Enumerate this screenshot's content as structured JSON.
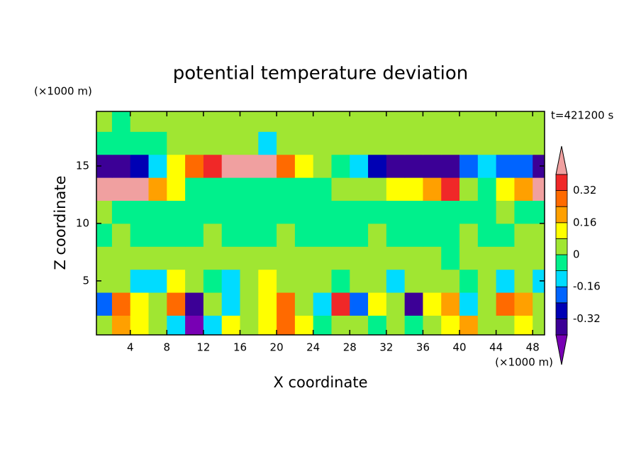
{
  "chart_data": {
    "type": "contour",
    "title": "potential temperature deviation",
    "x_label": "X coordinate",
    "y_label": "Z coordinate",
    "x_unit": "(×1000 m)",
    "y_unit": "(×1000 m)",
    "annotation": "t=421200 s",
    "xlim": [
      0.3,
      49.3
    ],
    "ylim": [
      0.3,
      19.75
    ],
    "xticks": [
      4,
      8,
      12,
      16,
      20,
      24,
      28,
      32,
      36,
      40,
      44,
      48
    ],
    "yticks": [
      5,
      10,
      15
    ],
    "x": [
      1,
      3,
      5,
      7,
      9,
      11,
      13,
      15,
      17,
      19,
      21,
      23,
      25,
      27,
      29,
      31,
      33,
      35,
      37,
      39,
      41,
      43,
      45,
      47,
      49
    ],
    "y": [
      1,
      3,
      5,
      7,
      9,
      11,
      13,
      15,
      17,
      19
    ],
    "z": [
      [
        0.05,
        0.2,
        0.1,
        0.03,
        -0.1,
        -0.45,
        -0.1,
        0.1,
        0.05,
        0.1,
        0.25,
        0.1,
        -0.03,
        0.03,
        0.05,
        -0.05,
        0.03,
        -0.05,
        0.05,
        0.15,
        0.2,
        0.05,
        0.03,
        0.1,
        0.03
      ],
      [
        -0.2,
        0.25,
        0.1,
        0.03,
        0.3,
        -0.35,
        0.05,
        -0.1,
        0.03,
        0.15,
        0.25,
        0.05,
        -0.1,
        0.35,
        -0.2,
        0.1,
        0.05,
        -0.35,
        0.1,
        0.2,
        -0.1,
        0.03,
        0.25,
        0.2,
        0.05
      ],
      [
        0.03,
        0.03,
        -0.1,
        -0.1,
        0.1,
        0.03,
        -0.03,
        -0.1,
        0.03,
        0.1,
        0.03,
        0.05,
        0.03,
        -0.05,
        0.03,
        0.03,
        -0.15,
        0.03,
        0.05,
        0.03,
        -0.05,
        0.03,
        -0.1,
        0.03,
        -0.1
      ],
      [
        0.03,
        0.03,
        0.03,
        0.03,
        0.05,
        0.03,
        0.03,
        0.03,
        0.05,
        0.03,
        0.03,
        0.03,
        0.05,
        0.03,
        0.03,
        0.03,
        0.03,
        0.03,
        0.03,
        -0.03,
        0.03,
        0.03,
        0.03,
        0.03,
        0.05
      ],
      [
        -0.03,
        0.03,
        -0.03,
        -0.03,
        -0.03,
        -0.03,
        0.03,
        -0.03,
        -0.03,
        -0.03,
        0.03,
        -0.03,
        -0.03,
        -0.03,
        -0.03,
        0.03,
        -0.03,
        -0.03,
        -0.03,
        -0.03,
        0.03,
        -0.03,
        -0.03,
        0.03,
        0.03
      ],
      [
        0.03,
        -0.03,
        -0.03,
        -0.03,
        -0.03,
        -0.03,
        -0.03,
        -0.03,
        -0.03,
        -0.03,
        -0.03,
        -0.03,
        -0.03,
        -0.03,
        -0.03,
        -0.03,
        -0.03,
        -0.03,
        -0.03,
        -0.03,
        -0.03,
        -0.03,
        0.03,
        -0.03,
        -0.03
      ],
      [
        0.45,
        0.45,
        0.4,
        0.2,
        0.1,
        -0.03,
        -0.03,
        -0.03,
        -0.03,
        -0.03,
        -0.03,
        -0.03,
        -0.03,
        0.03,
        0.03,
        0.03,
        0.1,
        0.1,
        0.2,
        0.35,
        0.03,
        -0.03,
        0.1,
        0.2,
        0.45
      ],
      [
        -0.38,
        -0.38,
        -0.3,
        -0.1,
        0.1,
        0.3,
        0.35,
        0.42,
        0.45,
        0.42,
        0.3,
        0.1,
        0.03,
        -0.03,
        -0.1,
        -0.25,
        -0.35,
        -0.38,
        -0.38,
        -0.38,
        -0.2,
        -0.1,
        -0.2,
        -0.2,
        -0.35
      ],
      [
        -0.03,
        -0.03,
        -0.03,
        -0.03,
        0.03,
        0.03,
        0.03,
        0.03,
        0.03,
        -0.1,
        0.03,
        0.03,
        0.03,
        0.03,
        0.03,
        0.03,
        0.03,
        0.03,
        0.03,
        0.03,
        0.03,
        0.03,
        0.03,
        0.03,
        0.03
      ],
      [
        0.03,
        -0.03,
        0.03,
        0.03,
        0.03,
        0.03,
        0.03,
        0.03,
        0.03,
        0.03,
        0.03,
        0.03,
        0.03,
        0.03,
        0.03,
        0.03,
        0.03,
        0.03,
        0.03,
        0.03,
        0.03,
        0.03,
        0.03,
        0.03,
        0.03
      ]
    ],
    "colorbar": {
      "levels": [
        -0.4,
        -0.32,
        -0.24,
        -0.16,
        -0.08,
        0,
        0.08,
        0.16,
        0.24,
        0.32,
        0.4
      ],
      "colors": [
        "#7800b4",
        "#3c0096",
        "#0000b4",
        "#0064ff",
        "#00dcff",
        "#00f08c",
        "#a0e632",
        "#ffff00",
        "#ffa000",
        "#ff6a00",
        "#f02828",
        "#f0a0a0"
      ],
      "ticks": [
        -0.32,
        -0.16,
        0,
        0.16,
        0.32
      ]
    }
  }
}
